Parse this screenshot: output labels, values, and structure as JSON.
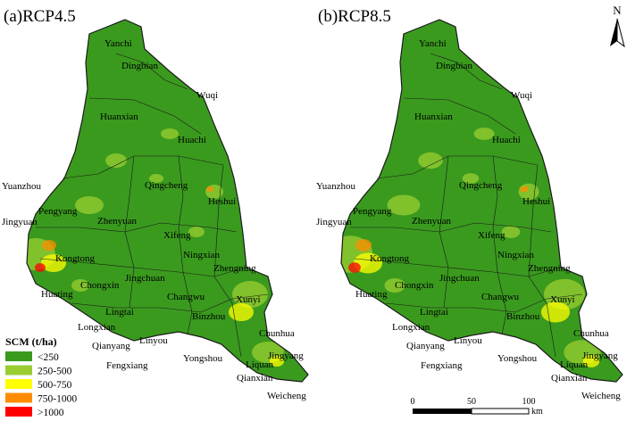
{
  "panels": [
    {
      "title": "(a)RCP4.5",
      "places": [
        "Yanchi",
        "Dingbian",
        "Wuqi",
        "Huanxian",
        "Huachi",
        "Qingcheng",
        "Heshui",
        "Yuanzhou",
        "Pengyang",
        "Zhenyuan",
        "Xifeng",
        "Jingyuan",
        "Kongtong",
        "Ningxian",
        "Zhengning",
        "Chongxin",
        "Huating",
        "Jingchuan",
        "Changwu",
        "Xunyi",
        "Longxian",
        "Lingtai",
        "Binzhou",
        "Chunhua",
        "Qianyang",
        "Linyou",
        "Yongshou",
        "Jingyang",
        "Fengxiang",
        "Qianxian",
        "Liquan",
        "Weicheng"
      ]
    },
    {
      "title": "(b)RCP8.5",
      "places": [
        "Yanchi",
        "Dingbian",
        "Wuqi",
        "Huanxian",
        "Huachi",
        "Qingcheng",
        "Heshui",
        "Yuanzhou",
        "Pengyang",
        "Zhenyuan",
        "Xifeng",
        "Jingyuan",
        "Kongtong",
        "Ningxian",
        "Zhengning",
        "Chongxin",
        "Huating",
        "Jingchuan",
        "Changwu",
        "Xunyi",
        "Longxian",
        "Lingtai",
        "Binzhou",
        "Chunhua",
        "Qianyang",
        "Linyou",
        "Yongshou",
        "Jingyang",
        "Fengxiang",
        "Qianxian",
        "Liquan",
        "Weicheng"
      ]
    }
  ],
  "legend": {
    "title": "SCM (t/ha)",
    "items": [
      {
        "label": "<250",
        "color": "#3a9a1e"
      },
      {
        "label": "250-500",
        "color": "#9acd32"
      },
      {
        "label": "500-750",
        "color": "#ffff00"
      },
      {
        "label": "750-1000",
        "color": "#ff8c00"
      },
      {
        "label": ">1000",
        "color": "#ff0000"
      }
    ]
  },
  "scale": {
    "ticks": [
      "0",
      "50",
      "100"
    ],
    "unit": "km"
  },
  "north": {
    "label": "N"
  }
}
